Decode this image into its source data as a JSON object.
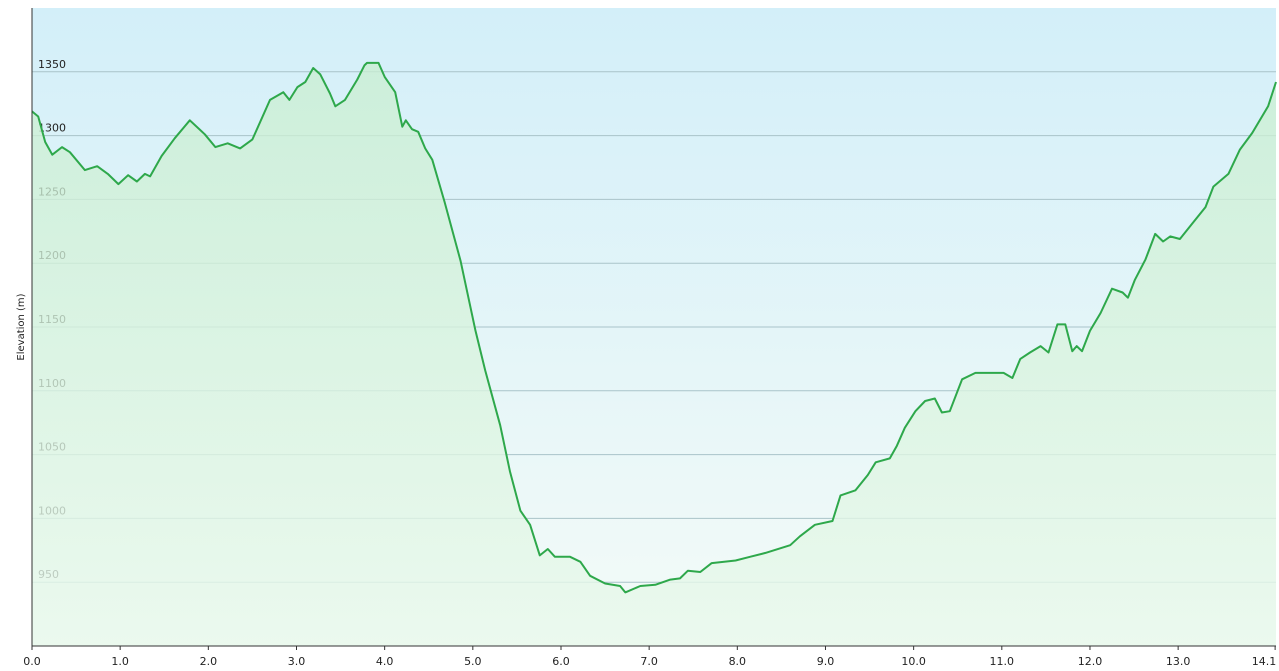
{
  "chart_data": {
    "type": "area",
    "y_label": "Elevation (m)",
    "color": "#2ea84b",
    "x": [
      0,
      0.07,
      0.15,
      0.23,
      0.34,
      0.43,
      0.6,
      0.74,
      0.86,
      0.98,
      1.09,
      1.19,
      1.28,
      1.34,
      1.47,
      1.62,
      1.79,
      1.96,
      2.08,
      2.22,
      2.36,
      2.5,
      2.7,
      2.85,
      2.92,
      3.01,
      3.1,
      3.19,
      3.27,
      3.38,
      3.44,
      3.55,
      3.69,
      3.77,
      3.8,
      3.93,
      4.0,
      4.12,
      4.2,
      4.24,
      4.31,
      4.38,
      4.46,
      4.54,
      4.68,
      4.86,
      5.03,
      5.14,
      5.31,
      5.42,
      5.54,
      5.65,
      5.76,
      5.85,
      5.93,
      6.1,
      6.22,
      6.33,
      6.5,
      6.67,
      6.73,
      6.9,
      7.07,
      7.24,
      7.35,
      7.44,
      7.58,
      7.71,
      7.98,
      8.15,
      8.32,
      8.6,
      8.71,
      8.88,
      9.08,
      9.17,
      9.34,
      9.48,
      9.57,
      9.73,
      9.81,
      9.9,
      10.02,
      10.13,
      10.24,
      10.32,
      10.41,
      10.55,
      10.7,
      10.87,
      11.02,
      11.12,
      11.21,
      11.32,
      11.44,
      11.53,
      11.63,
      11.72,
      11.8,
      11.85,
      11.91,
      12.0,
      12.12,
      12.25,
      12.37,
      12.43,
      12.51,
      12.63,
      12.74,
      12.83,
      12.91,
      13.02,
      13.16,
      13.31,
      13.4,
      13.57,
      13.7,
      13.84,
      14.02,
      14.11
    ],
    "values": [
      1319,
      1315,
      1295,
      1285,
      1291,
      1287,
      1273,
      1276,
      1270,
      1262,
      1269,
      1264,
      1270,
      1268,
      1284,
      1298,
      1312,
      1301,
      1291,
      1294,
      1290,
      1297,
      1328,
      1334,
      1328,
      1338,
      1342,
      1353,
      1348,
      1333,
      1323,
      1328,
      1344,
      1355,
      1357,
      1357,
      1346,
      1334,
      1307,
      1312,
      1305,
      1303,
      1290,
      1281,
      1248,
      1202,
      1147,
      1116,
      1073,
      1037,
      1006,
      995,
      971,
      976,
      970,
      970,
      966,
      955,
      949,
      947,
      942,
      947,
      948,
      952,
      953,
      959,
      958,
      965,
      967,
      970,
      973,
      979,
      986,
      995,
      998,
      1018,
      1022,
      1034,
      1044,
      1047,
      1057,
      1071,
      1084,
      1092,
      1094,
      1083,
      1084,
      1109,
      1114,
      1114,
      1114,
      1110,
      1125,
      1130,
      1135,
      1130,
      1152,
      1152,
      1131,
      1135,
      1131,
      1147,
      1161,
      1180,
      1177,
      1173,
      1187,
      1203,
      1223,
      1217,
      1221,
      1219,
      1231,
      1244,
      1260,
      1270,
      1289,
      1302,
      1323,
      1342
    ],
    "xlim": [
      0,
      14.11
    ],
    "xticks": [
      {
        "value": 0,
        "label": "0.0"
      },
      {
        "value": 1,
        "label": "1.0"
      },
      {
        "value": 2,
        "label": "2.0"
      },
      {
        "value": 3,
        "label": "3.0"
      },
      {
        "value": 4,
        "label": "4.0"
      },
      {
        "value": 5,
        "label": "5.0"
      },
      {
        "value": 6,
        "label": "6.0"
      },
      {
        "value": 7,
        "label": "7.0"
      },
      {
        "value": 8,
        "label": "8.0"
      },
      {
        "value": 9,
        "label": "9.0"
      },
      {
        "value": 10,
        "label": "10.0"
      },
      {
        "value": 11,
        "label": "11.0"
      },
      {
        "value": 12,
        "label": "12.0"
      },
      {
        "value": 13,
        "label": "13.0"
      },
      14.1
    ],
    "ylim": [
      900,
      1400
    ],
    "yticks": [
      950,
      1000,
      1050,
      1100,
      1150,
      1200,
      1250,
      1300,
      1350
    ],
    "grid": true
  }
}
